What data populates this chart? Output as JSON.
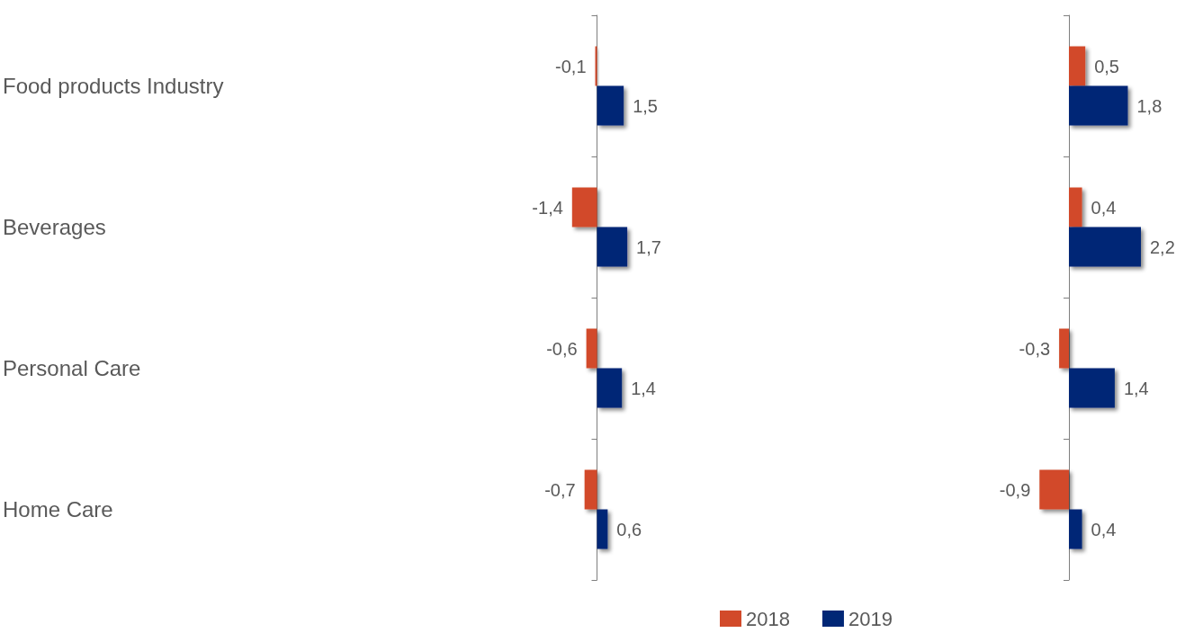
{
  "chart_data": [
    {
      "type": "bar",
      "orientation": "horizontal",
      "categories": [
        "Food products Industry",
        "Beverages",
        "Personal Care",
        "Home Care"
      ],
      "series": [
        {
          "name": "2018",
          "color": "#d24a2a",
          "values": [
            -0.1,
            -1.4,
            -0.6,
            -0.7
          ],
          "value_labels": [
            "-0,1",
            "-1,4",
            "-0,6",
            "-0,7"
          ]
        },
        {
          "name": "2019",
          "color": "#002776",
          "values": [
            1.5,
            1.7,
            1.4,
            0.6
          ],
          "value_labels": [
            "1,5",
            "1,7",
            "1,4",
            "0,6"
          ]
        }
      ],
      "tick_labels": "y",
      "legend": "bottom"
    },
    {
      "type": "bar",
      "orientation": "horizontal",
      "categories": [
        null,
        null,
        null,
        null
      ],
      "series": [
        {
          "color": "#d24a2a",
          "values": [
            0.5,
            0.4,
            -0.3,
            -0.9
          ],
          "value_labels": [
            "0,5",
            "0,4",
            "-0,3",
            "-0,9"
          ]
        },
        {
          "color": "#002776",
          "values": [
            1.8,
            2.2,
            1.4,
            0.4
          ],
          "value_labels": [
            "1,8",
            "2,2",
            "1,4",
            "0,4"
          ]
        }
      ],
      "tick_labels": false
    }
  ]
}
